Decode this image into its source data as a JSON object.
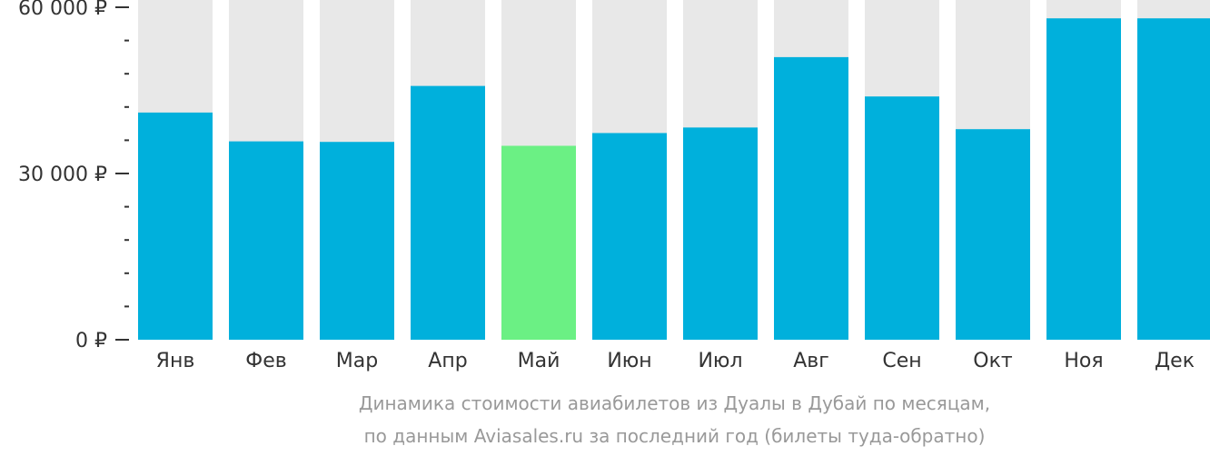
{
  "chart_data": {
    "type": "bar",
    "categories": [
      "Янв",
      "Фев",
      "Мар",
      "Апр",
      "Май",
      "Июн",
      "Июл",
      "Авг",
      "Сен",
      "Окт",
      "Ноя",
      "Дек"
    ],
    "values": [
      41000,
      35800,
      35700,
      45800,
      35000,
      37300,
      38300,
      51000,
      43900,
      38000,
      58000,
      58000
    ],
    "ylim": [
      0,
      60000
    ],
    "yticks": [
      {
        "value": 0,
        "label": "0 ₽"
      },
      {
        "value": 30000,
        "label": "30 000 ₽"
      },
      {
        "value": 60000,
        "label": "60 000 ₽"
      }
    ],
    "minor_tick_step": 6000,
    "highlight_index": 4,
    "grid": false,
    "title": "",
    "xlabel": "",
    "ylabel": ""
  },
  "colors": {
    "bar": "#00b0dc",
    "highlight": "#6bf084",
    "background_bar": "#e8e8e8",
    "axis": "#333333",
    "caption": "#999999"
  },
  "caption": {
    "line1": "Динамика стоимости авиабилетов из Дуалы в Дубай по месяцам,",
    "line2": "по данным Aviasales.ru за последний год (билеты туда-обратно)"
  }
}
